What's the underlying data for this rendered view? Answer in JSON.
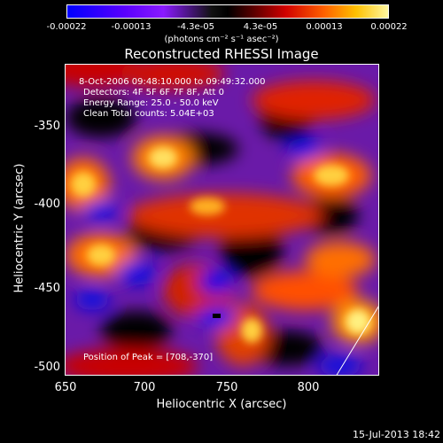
{
  "colorbar": {
    "ticks": [
      "-0.00022",
      "-0.00013",
      "-4.3e-05",
      "4.3e-05",
      "0.00013",
      "0.00022"
    ],
    "units": "(photons cm⁻² s⁻¹ asec⁻²)"
  },
  "title": "Reconstructed RHESSI Image",
  "annotation": {
    "line1": "8-Oct-2006 09:48:10.000 to 09:49:32.000",
    "line2": "Detectors: 4F 5F 6F 7F 8F, Att 0",
    "line3": "Energy Range: 25.0 - 50.0 keV",
    "line4": "Clean     Total counts: 5.04E+03",
    "peak": "Position of Peak = [708,-370]"
  },
  "axes": {
    "xlabel": "Heliocentric X (arcsec)",
    "ylabel": "Heliocentric Y (arcsec)",
    "xticks": [
      "650",
      "700",
      "750",
      "800"
    ],
    "yticks": [
      "-350",
      "-400",
      "-450",
      "-500"
    ]
  },
  "footer": "15-Jul-2013 18:42"
}
